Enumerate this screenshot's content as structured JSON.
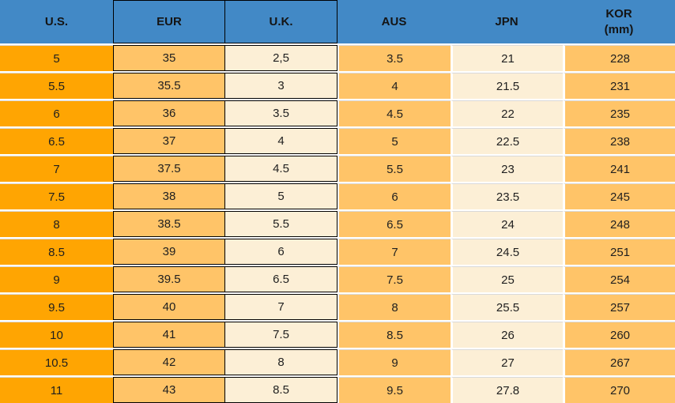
{
  "chart_data": {
    "type": "table",
    "description": "Shoe size conversion table",
    "columns": [
      {
        "key": "us",
        "label": "U.S."
      },
      {
        "key": "eur",
        "label": "EUR"
      },
      {
        "key": "uk",
        "label": "U.K."
      },
      {
        "key": "aus",
        "label": "AUS"
      },
      {
        "key": "jpn",
        "label": "JPN"
      },
      {
        "key": "kor",
        "label": "KOR",
        "sublabel": "(mm)"
      }
    ],
    "rows": [
      [
        "5",
        "35",
        "2,5",
        "3.5",
        "21",
        "228"
      ],
      [
        "5.5",
        "35.5",
        "3",
        "4",
        "21.5",
        "231"
      ],
      [
        "6",
        "36",
        "3.5",
        "4.5",
        "22",
        "235"
      ],
      [
        "6.5",
        "37",
        "4",
        "5",
        "22.5",
        "238"
      ],
      [
        "7",
        "37.5",
        "4.5",
        "5.5",
        "23",
        "241"
      ],
      [
        "7.5",
        "38",
        "5",
        "6",
        "23.5",
        "245"
      ],
      [
        "8",
        "38.5",
        "5.5",
        "6.5",
        "24",
        "248"
      ],
      [
        "8.5",
        "39",
        "6",
        "7",
        "24.5",
        "251"
      ],
      [
        "9",
        "39.5",
        "6.5",
        "7.5",
        "25",
        "254"
      ],
      [
        "9.5",
        "40",
        "7",
        "8",
        "25.5",
        "257"
      ],
      [
        "10",
        "41",
        "7.5",
        "8.5",
        "26",
        "260"
      ],
      [
        "10.5",
        "42",
        "8",
        "9",
        "27",
        "267"
      ],
      [
        "11",
        "43",
        "8.5",
        "9.5",
        "27.8",
        "270"
      ]
    ]
  },
  "colors": {
    "header_bg": "#4289C6",
    "col_us_bg": "#FFA502",
    "col_orange_bg": "#FFC468",
    "col_cream_bg": "#FCEFD6",
    "cell_border": "#000000",
    "row_separator": "#D9D9D9",
    "text": "#1f1f1f"
  }
}
